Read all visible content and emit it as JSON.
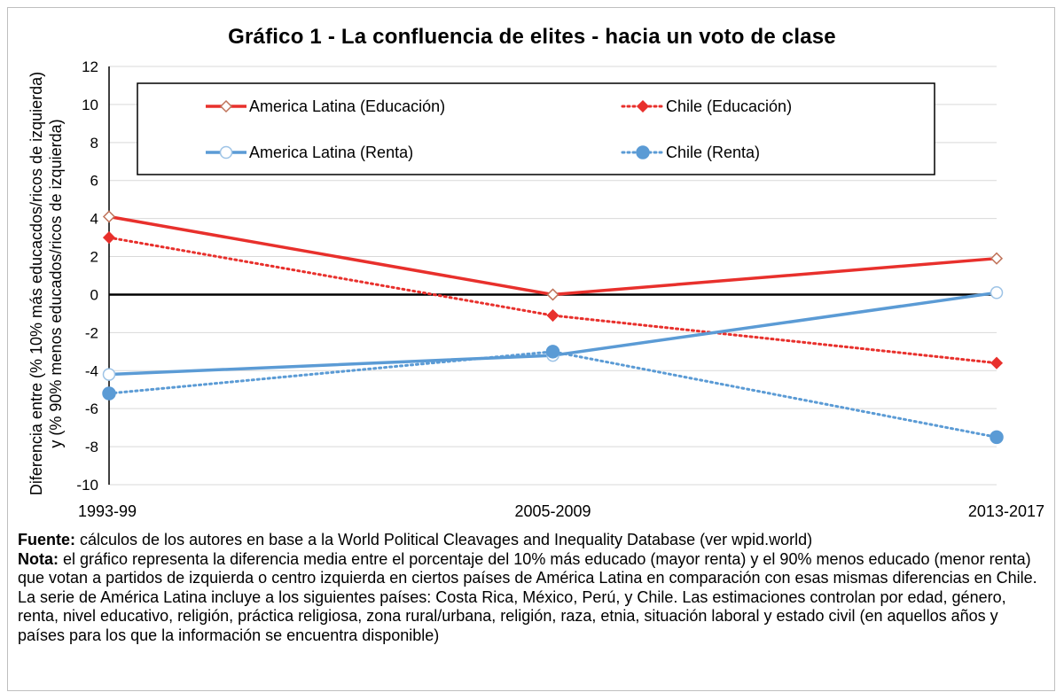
{
  "chart_data": {
    "type": "line",
    "title": "Gráfico 1 - La confluencia de elites - hacia un voto de clase",
    "ylabel_line1": "Diferencia entre (% 10% más educacdos/ricos de izquierda)",
    "ylabel_line2": "y (% 90% menos educados/ricos de izquierda)",
    "categories": [
      "1993-99",
      "2005-2009",
      "2013-2017"
    ],
    "ylim": [
      -10,
      12
    ],
    "yticks": [
      12,
      10,
      8,
      6,
      4,
      2,
      0,
      -2,
      -4,
      -6,
      -8,
      -10
    ],
    "grid": true,
    "legend_position": "top",
    "series": [
      {
        "name": "America Latina (Educación)",
        "values": [
          4.1,
          0.0,
          1.9
        ],
        "color": "#e8302c",
        "style": "solid",
        "marker": "diamond-open"
      },
      {
        "name": "Chile (Educación)",
        "values": [
          3.0,
          -1.1,
          -3.6
        ],
        "color": "#e8302c",
        "style": "dotted",
        "marker": "diamond-filled"
      },
      {
        "name": "America Latina (Renta)",
        "values": [
          -4.2,
          -3.2,
          0.1
        ],
        "color": "#5b9bd5",
        "style": "solid",
        "marker": "circle-open"
      },
      {
        "name": "Chile (Renta)",
        "values": [
          -5.2,
          -3.0,
          -7.5
        ],
        "color": "#5b9bd5",
        "style": "dotted",
        "marker": "circle-filled"
      }
    ]
  },
  "notes": {
    "source_label": "Fuente:",
    "source_text": " cálculos de los autores en base a la World Political Cleavages and Inequality Database (ver wpid.world)",
    "note_label": "Nota:",
    "note_text": " el gráfico representa la diferencia media entre el porcentaje del 10% más educado (mayor renta) y el 90% menos educado (menor renta) que votan a partidos de izquierda o centro izquierda en ciertos países de América Latina en comparación con esas mismas diferencias en Chile. La serie de América Latina incluye a los siguientes países: Costa Rica, México, Perú, y Chile. Las estimaciones controlan por edad, género, renta, nivel educativo, religión, práctica religiosa, zona rural/urbana, religión, raza, etnia, situación laboral y estado civil (en aquellos años y países para los que la información se encuentra disponible)"
  }
}
